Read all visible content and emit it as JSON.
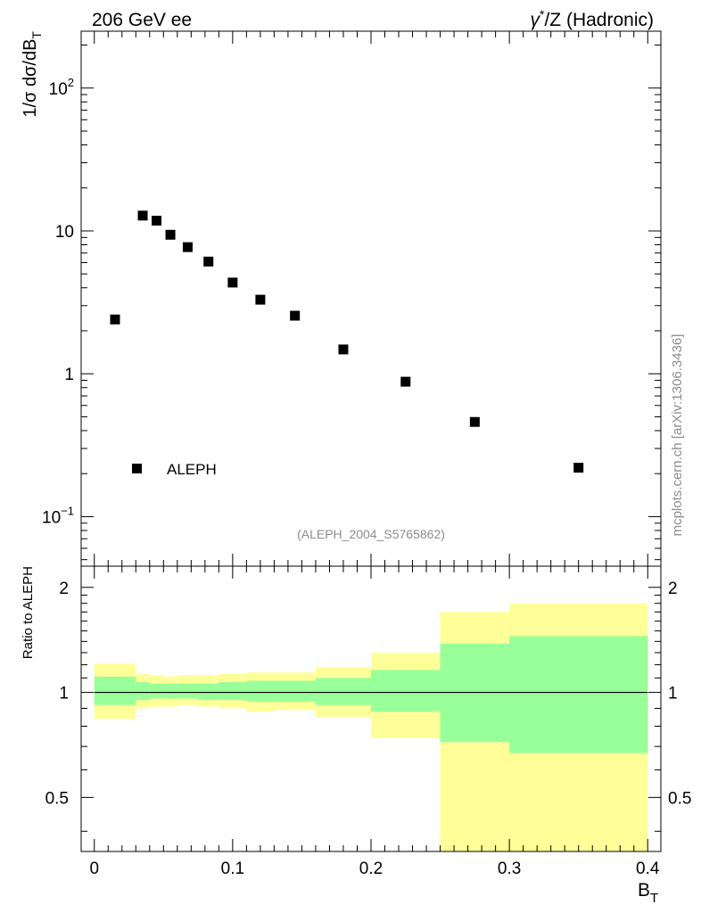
{
  "header": {
    "left": "206 GeV ee",
    "right_sym": "γ",
    "right_sup": "*",
    "right_rest": "/Z (Hadronic)"
  },
  "side_label": "mcplots.cern.ch [arXiv:1306.3436]",
  "analysis_id": "(ALEPH_2004_S5765862)",
  "colors": {
    "band_outer": "#ffff99",
    "band_inner": "#99ff99",
    "points": "#000000",
    "ref_line": "#000000"
  },
  "chart_data": [
    {
      "panel": "main",
      "type": "scatter",
      "xlim": [
        -0.0095,
        0.4095
      ],
      "ylim": [
        0.045,
        250
      ],
      "yscale": "log",
      "ylabel_main": "1/σ  dσ/dB",
      "ylabel_sub": "T",
      "y_ticks": [
        {
          "value": 0.1,
          "base": "10",
          "exp": "−1"
        },
        {
          "value": 1,
          "base": "1",
          "exp": ""
        },
        {
          "value": 10,
          "base": "10",
          "exp": ""
        },
        {
          "value": 100,
          "base": "10",
          "exp": "2"
        }
      ],
      "legend": {
        "label": "ALEPH",
        "position": "lower-left"
      },
      "series": [
        {
          "name": "ALEPH",
          "marker": "square",
          "x": [
            0.015,
            0.035,
            0.045,
            0.055,
            0.0675,
            0.0825,
            0.1,
            0.12,
            0.145,
            0.18,
            0.225,
            0.275,
            0.35
          ],
          "y": [
            2.4,
            12.8,
            11.8,
            9.4,
            7.7,
            6.1,
            4.35,
            3.3,
            2.55,
            1.48,
            0.88,
            0.46,
            0.22
          ]
        }
      ]
    },
    {
      "panel": "ratio",
      "type": "area",
      "ylabel": "Ratio to ALEPH",
      "xlabel_main": "B",
      "xlabel_sub": "T",
      "xlim": [
        -0.0095,
        0.4095
      ],
      "ylim": [
        0.35,
        2.3
      ],
      "yscale": "log",
      "y_ticks": [
        {
          "value": 0.5,
          "label": "0.5"
        },
        {
          "value": 1,
          "label": "1"
        },
        {
          "value": 2,
          "label": "2"
        }
      ],
      "x_ticks": [
        {
          "value": 0,
          "label": "0"
        },
        {
          "value": 0.1,
          "label": "0.1"
        },
        {
          "value": 0.2,
          "label": "0.2"
        },
        {
          "value": 0.3,
          "label": "0.3"
        },
        {
          "value": 0.4,
          "label": "0.4"
        }
      ],
      "bins": [
        {
          "x0": 0.0,
          "x1": 0.03,
          "outer": [
            0.84,
            1.21
          ],
          "inner": [
            0.92,
            1.11
          ]
        },
        {
          "x0": 0.03,
          "x1": 0.04,
          "outer": [
            0.9,
            1.13
          ],
          "inner": [
            0.95,
            1.07
          ]
        },
        {
          "x0": 0.04,
          "x1": 0.05,
          "outer": [
            0.91,
            1.12
          ],
          "inner": [
            0.96,
            1.06
          ]
        },
        {
          "x0": 0.05,
          "x1": 0.06,
          "outer": [
            0.91,
            1.11
          ],
          "inner": [
            0.96,
            1.06
          ]
        },
        {
          "x0": 0.06,
          "x1": 0.075,
          "outer": [
            0.92,
            1.12
          ],
          "inner": [
            0.96,
            1.06
          ]
        },
        {
          "x0": 0.075,
          "x1": 0.09,
          "outer": [
            0.91,
            1.12
          ],
          "inner": [
            0.95,
            1.06
          ]
        },
        {
          "x0": 0.09,
          "x1": 0.11,
          "outer": [
            0.9,
            1.13
          ],
          "inner": [
            0.95,
            1.07
          ]
        },
        {
          "x0": 0.11,
          "x1": 0.13,
          "outer": [
            0.88,
            1.14
          ],
          "inner": [
            0.94,
            1.08
          ]
        },
        {
          "x0": 0.13,
          "x1": 0.16,
          "outer": [
            0.89,
            1.14
          ],
          "inner": [
            0.94,
            1.08
          ]
        },
        {
          "x0": 0.16,
          "x1": 0.2,
          "outer": [
            0.85,
            1.18
          ],
          "inner": [
            0.92,
            1.1
          ]
        },
        {
          "x0": 0.2,
          "x1": 0.25,
          "outer": [
            0.74,
            1.3
          ],
          "inner": [
            0.88,
            1.16
          ]
        },
        {
          "x0": 0.25,
          "x1": 0.3,
          "outer": [
            0.35,
            1.7
          ],
          "inner": [
            0.72,
            1.38
          ]
        },
        {
          "x0": 0.3,
          "x1": 0.4,
          "outer": [
            0.35,
            1.8
          ],
          "inner": [
            0.67,
            1.45
          ]
        }
      ],
      "reference": 1.0
    }
  ]
}
